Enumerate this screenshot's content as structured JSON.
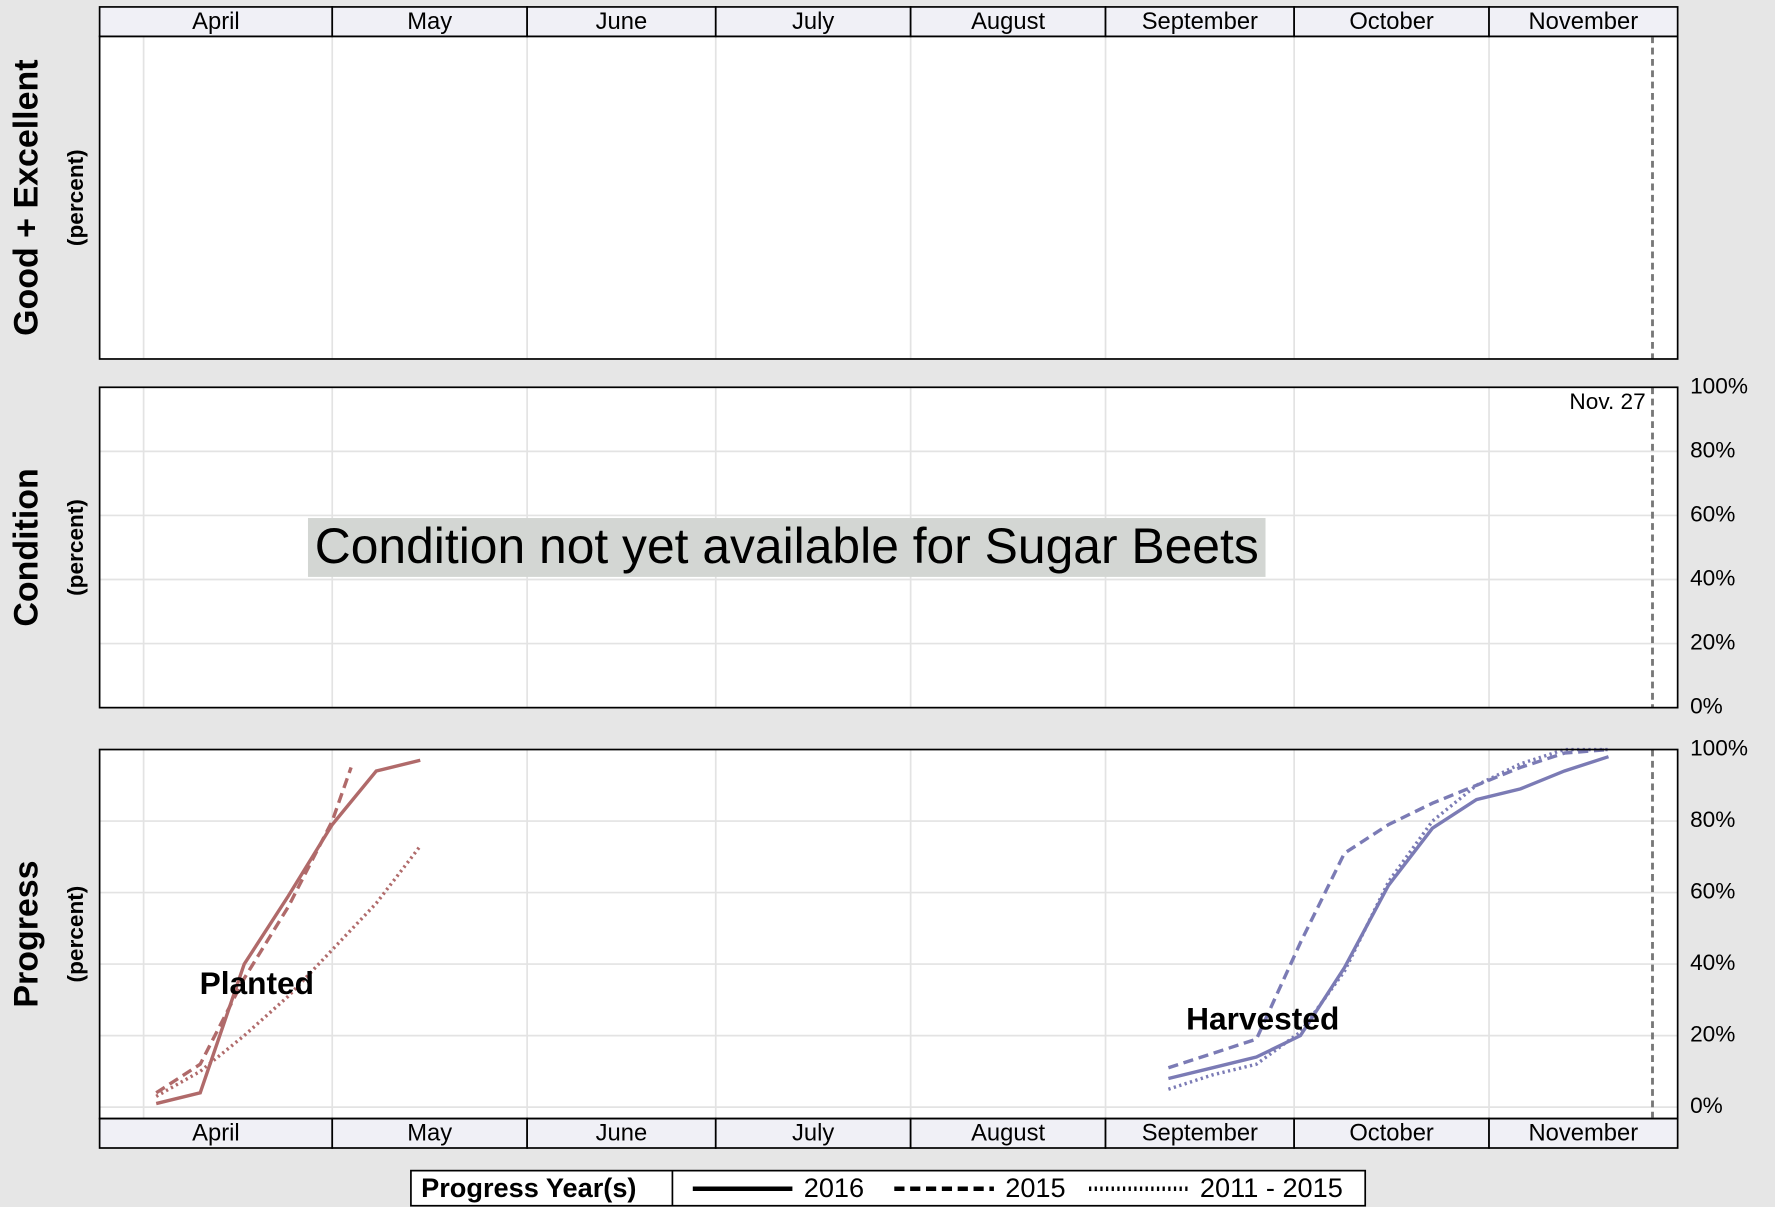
{
  "chart_data": [
    {
      "type": "line",
      "ylabel": "Good + Excellent",
      "ylabel_sub": "(percent)",
      "categories": [
        "April",
        "May",
        "June",
        "July",
        "August",
        "September",
        "October",
        "November"
      ],
      "xlim": [
        85,
        336
      ],
      "xticks": [
        92,
        122,
        153,
        183,
        214,
        245,
        275,
        306
      ],
      "grid": true,
      "reference_line": {
        "x": 332
      }
    },
    {
      "type": "line",
      "ylabel": "Condition",
      "ylabel_sub": "(percent)",
      "xlim": [
        85,
        336
      ],
      "xticks": [
        92,
        122,
        153,
        183,
        214,
        245,
        275,
        306
      ],
      "grid": true,
      "ylim": [
        0,
        100
      ],
      "yticks": [
        {
          "value": 0,
          "label": "0%"
        },
        {
          "value": 20,
          "label": "20%"
        },
        {
          "value": 40,
          "label": "40%"
        },
        {
          "value": 60,
          "label": "60%"
        },
        {
          "value": 80,
          "label": "80%"
        },
        {
          "value": 100,
          "label": "100%"
        }
      ],
      "reference_line": {
        "x": 332,
        "label": "Nov. 27"
      },
      "message": "Condition not yet available for Sugar Beets"
    },
    {
      "type": "line",
      "ylabel": "Progress",
      "ylabel_sub": "(percent)",
      "categories": [
        "April",
        "May",
        "June",
        "July",
        "August",
        "September",
        "October",
        "November"
      ],
      "xlim": [
        85,
        336
      ],
      "xticks": [
        92,
        122,
        153,
        183,
        214,
        245,
        275,
        306
      ],
      "grid": true,
      "ylim": [
        -3.2,
        100
      ],
      "yticks": [
        {
          "value": 0,
          "label": "0%"
        },
        {
          "value": 20,
          "label": "20%"
        },
        {
          "value": 40,
          "label": "40%"
        },
        {
          "value": 60,
          "label": "60%"
        },
        {
          "value": 80,
          "label": "80%"
        },
        {
          "value": 100,
          "label": "100%"
        }
      ],
      "reference_line": {
        "x": 332
      },
      "legend": {
        "title": "Progress Year(s)",
        "entries": [
          "2016",
          "2015",
          "2011 - 2015"
        ],
        "dashes": [
          "solid",
          "dashed",
          "dotted"
        ]
      },
      "series": [
        {
          "name": "Planted",
          "color": "#b06a6a",
          "label_at": [
            110,
            34
          ],
          "lines": [
            {
              "x": [
                94,
                101,
                108,
                115,
                122,
                129,
                136
              ],
              "values": [
                1,
                4,
                40,
                59,
                79,
                94,
                97
              ]
            },
            {
              "x": [
                94,
                101,
                108,
                115,
                122,
                125
              ],
              "values": [
                4,
                12,
                36,
                56,
                80,
                95
              ]
            },
            {
              "x": [
                94,
                101,
                108,
                115,
                122,
                129,
                136
              ],
              "values": [
                3,
                10,
                20,
                31,
                44,
                57,
                73
              ]
            }
          ]
        },
        {
          "name": "Harvested",
          "color": "#7b7bb5",
          "label_at": [
            270,
            24
          ],
          "lines": [
            {
              "x": [
                255,
                262,
                269,
                276,
                283,
                290,
                297,
                304,
                311,
                318,
                325
              ],
              "values": [
                8,
                11,
                14,
                20,
                39,
                62,
                78,
                86,
                89,
                94,
                98
              ]
            },
            {
              "x": [
                255,
                262,
                269,
                276,
                283,
                290,
                297,
                304,
                311,
                318,
                325
              ],
              "values": [
                11,
                15,
                19,
                46,
                71,
                79,
                85,
                90,
                95,
                99,
                100
              ]
            },
            {
              "x": [
                255,
                262,
                269,
                276,
                283,
                290,
                297,
                304,
                311,
                318,
                325
              ],
              "values": [
                5,
                9,
                12,
                21,
                38,
                63,
                80,
                90,
                96,
                100,
                100
              ]
            }
          ]
        }
      ]
    }
  ]
}
